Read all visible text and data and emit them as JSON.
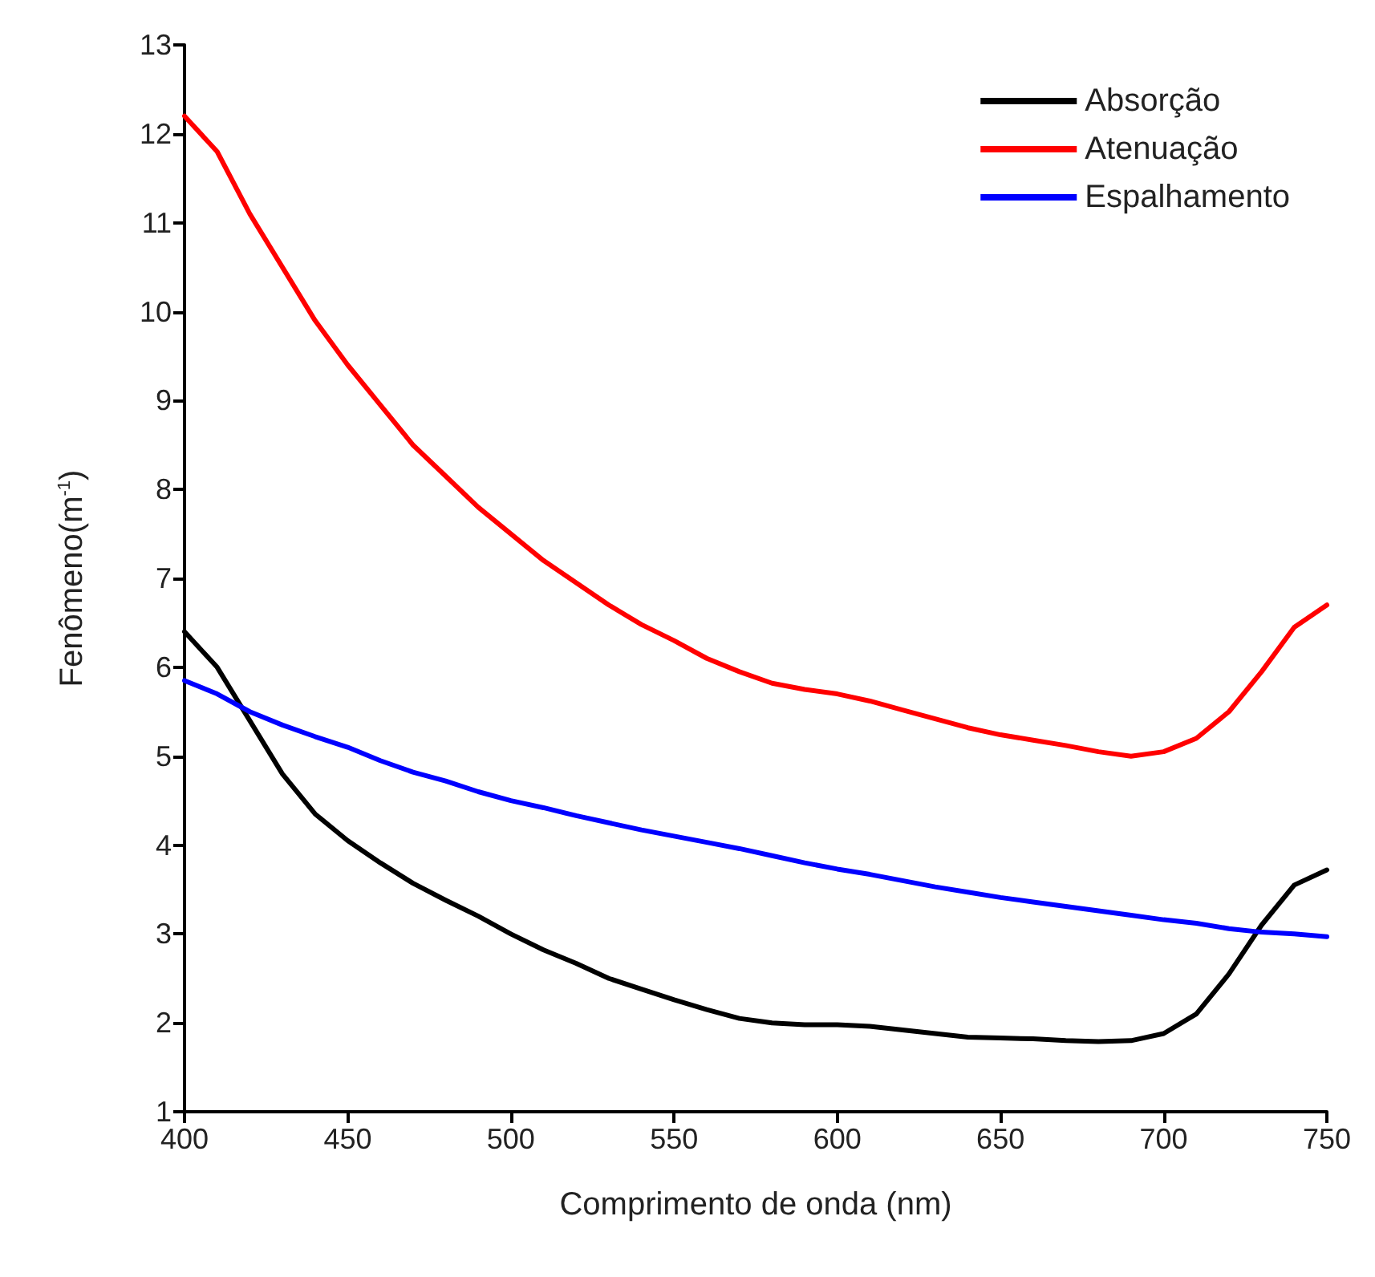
{
  "chart_data": {
    "type": "line",
    "xlabel": "Comprimento de onda (nm)",
    "ylabel": "Fenômeno(m$^{-1}$)",
    "x": [
      400,
      410,
      420,
      430,
      440,
      450,
      460,
      470,
      480,
      490,
      500,
      510,
      520,
      530,
      540,
      550,
      560,
      570,
      580,
      590,
      600,
      610,
      620,
      630,
      640,
      650,
      660,
      670,
      680,
      690,
      700,
      710,
      720,
      730,
      740,
      750
    ],
    "series": [
      {
        "name": "Absorção",
        "color": "#000000",
        "values": [
          6.4,
          6.0,
          5.4,
          4.8,
          4.35,
          4.05,
          3.8,
          3.57,
          3.38,
          3.2,
          3.0,
          2.82,
          2.67,
          2.5,
          2.38,
          2.26,
          2.15,
          2.05,
          2.0,
          1.98,
          1.98,
          1.96,
          1.92,
          1.88,
          1.84,
          1.83,
          1.82,
          1.8,
          1.79,
          1.8,
          1.88,
          2.1,
          2.55,
          3.1,
          3.55,
          3.72
        ]
      },
      {
        "name": "Atenuação",
        "color": "#ff0000",
        "values": [
          12.2,
          11.8,
          11.1,
          10.5,
          9.9,
          9.4,
          8.95,
          8.5,
          8.15,
          7.8,
          7.5,
          7.2,
          6.95,
          6.7,
          6.48,
          6.3,
          6.1,
          5.95,
          5.82,
          5.75,
          5.7,
          5.62,
          5.52,
          5.42,
          5.32,
          5.24,
          5.18,
          5.12,
          5.05,
          5.0,
          5.05,
          5.2,
          5.5,
          5.95,
          6.45,
          6.7
        ]
      },
      {
        "name": "Espalhamento",
        "color": "#0000ff",
        "values": [
          5.85,
          5.7,
          5.5,
          5.35,
          5.22,
          5.1,
          4.95,
          4.82,
          4.72,
          4.6,
          4.5,
          4.42,
          4.33,
          4.25,
          4.17,
          4.1,
          4.03,
          3.96,
          3.88,
          3.8,
          3.73,
          3.67,
          3.6,
          3.53,
          3.47,
          3.41,
          3.36,
          3.31,
          3.26,
          3.21,
          3.16,
          3.12,
          3.06,
          3.02,
          3.0,
          2.97
        ]
      }
    ],
    "xlim": [
      400,
      750
    ],
    "xticks": [
      400,
      450,
      500,
      550,
      600,
      650,
      700,
      750
    ],
    "ylim": [
      1,
      13
    ],
    "yticks": [
      1,
      2,
      3,
      4,
      5,
      6,
      7,
      8,
      9,
      10,
      11,
      12,
      13
    ],
    "grid": false,
    "legend": "top right",
    "marker": "none",
    "line_style": "solid"
  }
}
